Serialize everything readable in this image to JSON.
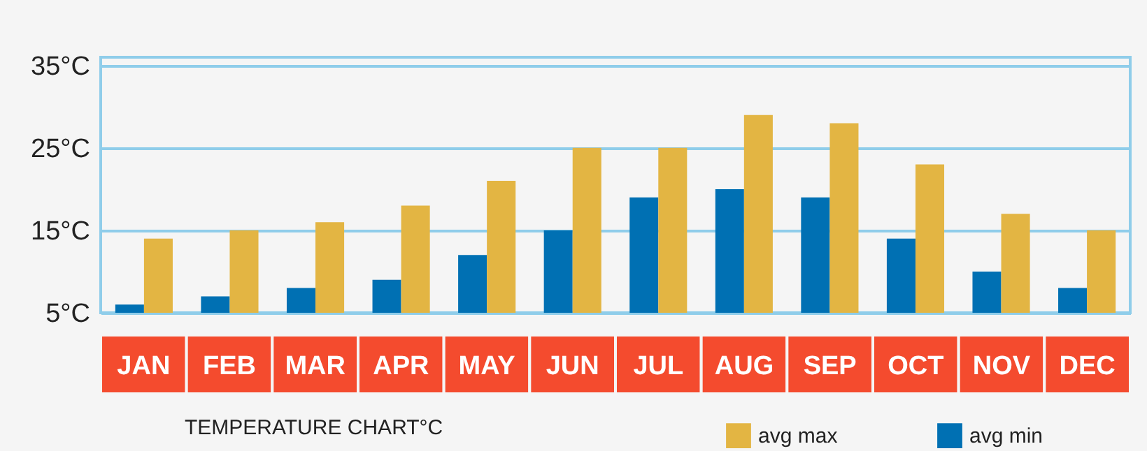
{
  "chart_data": {
    "type": "bar",
    "categories": [
      "JAN",
      "FEB",
      "MAR",
      "APR",
      "MAY",
      "JUN",
      "JUL",
      "AUG",
      "SEP",
      "OCT",
      "NOV",
      "DEC"
    ],
    "series": [
      {
        "name": "avg min",
        "color": "#0070b3",
        "values": [
          6,
          7,
          8,
          9,
          12,
          15,
          19,
          20,
          19,
          14,
          10,
          8
        ]
      },
      {
        "name": "avg max",
        "color": "#e3b543",
        "values": [
          14,
          15,
          16,
          18,
          21,
          25,
          25,
          29,
          28,
          23,
          17,
          15
        ]
      }
    ],
    "ylim": [
      5,
      36
    ],
    "yticks": [
      {
        "value": 5,
        "label": "5°C"
      },
      {
        "value": 15,
        "label": "15°C"
      },
      {
        "value": 25,
        "label": "25°C"
      },
      {
        "value": 35,
        "label": "35°C"
      }
    ],
    "grid": "y",
    "legend": "bottom right",
    "annotations": [
      "TEMPERATURE CHART°C"
    ]
  }
}
